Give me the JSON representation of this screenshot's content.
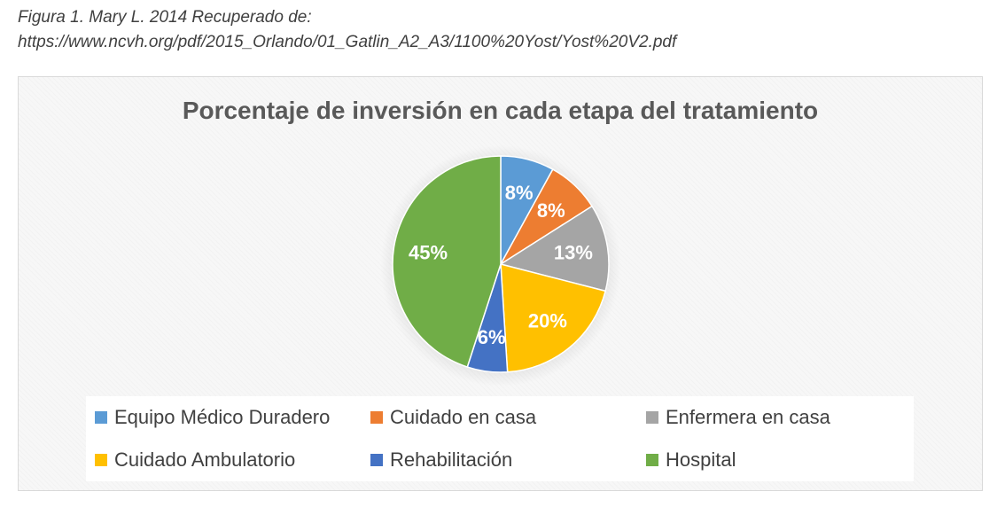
{
  "caption": {
    "line1": "Figura 1. Mary L. 2014 Recuperado de:",
    "line2": "https://www.ncvh.org/pdf/2015_Orlando/01_Gatlin_A2_A3/1100%20Yost/Yost%20V2.pdf"
  },
  "chart_data": {
    "type": "pie",
    "title": "Porcentaje de inversión en cada etapa del tratamiento",
    "legend_position": "bottom",
    "slices": [
      {
        "label": "Equipo Médico Duradero",
        "value": 8,
        "display": "8%",
        "color": "#5b9bd5"
      },
      {
        "label": "Cuidado en casa",
        "value": 8,
        "display": "8%",
        "color": "#ed7d31"
      },
      {
        "label": "Enfermera en casa",
        "value": 13,
        "display": "13%",
        "color": "#a5a5a5"
      },
      {
        "label": "Cuidado Ambulatorio",
        "value": 20,
        "display": "20%",
        "color": "#ffc000"
      },
      {
        "label": "Rehabilitación",
        "value": 6,
        "display": "6%",
        "color": "#4472c4"
      },
      {
        "label": "Hospital",
        "value": 45,
        "display": "45%",
        "color": "#70ad47"
      }
    ]
  }
}
